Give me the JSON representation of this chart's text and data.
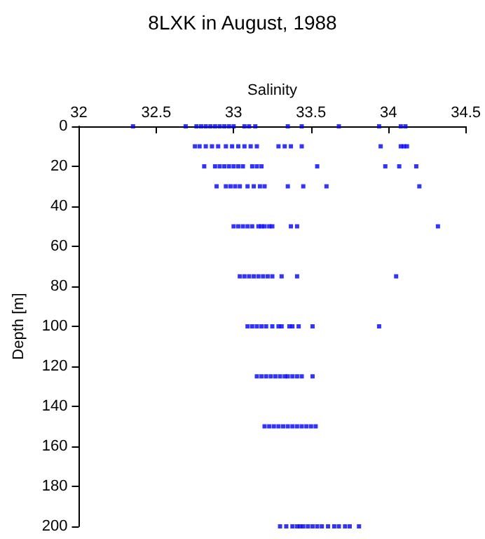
{
  "chart_data": {
    "type": "scatter",
    "title": "8LXK in August, 1988",
    "xlabel": "Salinity",
    "ylabel": "Depth [m]",
    "xlim": [
      32,
      34.5
    ],
    "xticks": [
      32,
      32.5,
      33,
      33.5,
      34,
      34.5
    ],
    "ylim": [
      200,
      0
    ],
    "yticks": [
      0,
      20,
      40,
      60,
      80,
      100,
      120,
      140,
      160,
      180,
      200
    ],
    "grid": false,
    "marker": "square",
    "series": [
      {
        "color": "#0000ff",
        "x": [
          32.35,
          32.69,
          32.76,
          32.79,
          32.82,
          32.85,
          32.88,
          32.91,
          32.94,
          32.97,
          33.0,
          33.07,
          33.1,
          33.14,
          33.35,
          33.44,
          33.68,
          33.94,
          34.08,
          34.11,
          32.75,
          32.78,
          32.82,
          32.86,
          32.9,
          32.95,
          32.99,
          33.03,
          33.07,
          33.11,
          33.15,
          33.29,
          33.33,
          33.37,
          33.44,
          33.95,
          34.08,
          34.1,
          34.12,
          32.81,
          32.88,
          32.91,
          32.94,
          32.97,
          33.0,
          33.03,
          33.06,
          33.12,
          33.15,
          33.18,
          33.54,
          33.98,
          34.07,
          34.18,
          32.89,
          32.95,
          32.98,
          33.01,
          33.04,
          33.09,
          33.13,
          33.17,
          33.2,
          33.35,
          33.45,
          33.6,
          34.2,
          33.0,
          33.03,
          33.06,
          33.09,
          33.12,
          33.16,
          33.18,
          33.2,
          33.23,
          33.25,
          33.37,
          33.41,
          34.32,
          33.04,
          33.07,
          33.1,
          33.13,
          33.16,
          33.19,
          33.22,
          33.25,
          33.31,
          33.41,
          34.05,
          33.09,
          33.12,
          33.15,
          33.18,
          33.21,
          33.25,
          33.29,
          33.31,
          33.36,
          33.38,
          33.42,
          33.51,
          33.94,
          33.15,
          33.18,
          33.21,
          33.24,
          33.27,
          33.3,
          33.33,
          33.35,
          33.38,
          33.41,
          33.44,
          33.51,
          33.2,
          33.23,
          33.26,
          33.29,
          33.32,
          33.35,
          33.38,
          33.41,
          33.44,
          33.47,
          33.5,
          33.53,
          33.3,
          33.34,
          33.38,
          33.41,
          33.43,
          33.45,
          33.48,
          33.51,
          33.54,
          33.57,
          33.61,
          33.65,
          33.68,
          33.72,
          33.75,
          33.81
        ],
        "values": [
          0,
          0,
          0,
          0,
          0,
          0,
          0,
          0,
          0,
          0,
          0,
          0,
          0,
          0,
          0,
          0,
          0,
          0,
          0,
          0,
          10,
          10,
          10,
          10,
          10,
          10,
          10,
          10,
          10,
          10,
          10,
          10,
          10,
          10,
          10,
          10,
          10,
          10,
          10,
          20,
          20,
          20,
          20,
          20,
          20,
          20,
          20,
          20,
          20,
          20,
          20,
          20,
          20,
          20,
          30,
          30,
          30,
          30,
          30,
          30,
          30,
          30,
          30,
          30,
          30,
          30,
          30,
          50,
          50,
          50,
          50,
          50,
          50,
          50,
          50,
          50,
          50,
          50,
          50,
          50,
          75,
          75,
          75,
          75,
          75,
          75,
          75,
          75,
          75,
          75,
          75,
          100,
          100,
          100,
          100,
          100,
          100,
          100,
          100,
          100,
          100,
          100,
          100,
          100,
          125,
          125,
          125,
          125,
          125,
          125,
          125,
          125,
          125,
          125,
          125,
          125,
          150,
          150,
          150,
          150,
          150,
          150,
          150,
          150,
          150,
          150,
          150,
          150,
          200,
          200,
          200,
          200,
          200,
          200,
          200,
          200,
          200,
          200,
          200,
          200,
          200,
          200,
          200,
          200
        ]
      }
    ]
  }
}
